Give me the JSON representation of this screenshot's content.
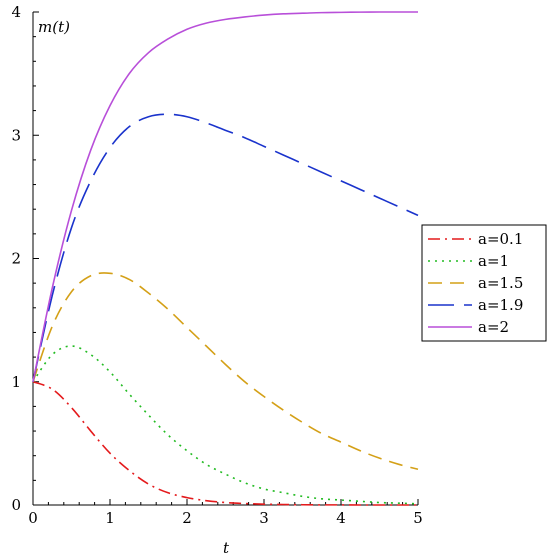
{
  "chart_data": {
    "type": "line",
    "xlabel": "t",
    "ylabel": "m(t)",
    "xlim": [
      0,
      5
    ],
    "ylim": [
      0,
      4
    ],
    "xticks": [
      "0",
      "1",
      "2",
      "3",
      "4",
      "5"
    ],
    "yticks": [
      "0",
      "1",
      "2",
      "3",
      "4"
    ],
    "grid": false,
    "legend_position": "right",
    "x": [
      0,
      0.25,
      0.5,
      0.75,
      1,
      1.25,
      1.5,
      1.75,
      2,
      2.25,
      2.5,
      2.75,
      3,
      3.25,
      3.5,
      3.75,
      4,
      4.25,
      4.5,
      4.75,
      5
    ],
    "series": [
      {
        "name": "a=0.1",
        "color": "#e41a1c",
        "dash": "dashdot",
        "values": [
          1.0,
          0.94,
          0.79,
          0.6,
          0.42,
          0.28,
          0.17,
          0.1,
          0.06,
          0.035,
          0.02,
          0.012,
          0.007,
          0.004,
          0.002,
          0.001,
          0.001,
          0.0,
          0.0,
          0.0,
          0.0
        ]
      },
      {
        "name": "a=1",
        "color": "#22bb22",
        "dash": "dot",
        "values": [
          1.0,
          1.22,
          1.29,
          1.22,
          1.08,
          0.9,
          0.73,
          0.57,
          0.44,
          0.33,
          0.25,
          0.18,
          0.13,
          0.1,
          0.07,
          0.05,
          0.04,
          0.03,
          0.02,
          0.015,
          0.01
        ]
      },
      {
        "name": "a=1.5",
        "color": "#d4a017",
        "dash": "dash",
        "values": [
          1.0,
          1.45,
          1.73,
          1.86,
          1.88,
          1.83,
          1.72,
          1.59,
          1.44,
          1.29,
          1.14,
          1.0,
          0.88,
          0.77,
          0.67,
          0.58,
          0.51,
          0.44,
          0.38,
          0.33,
          0.29
        ]
      },
      {
        "name": "a=1.9",
        "color": "#1a33cc",
        "dash": "longdash",
        "values": [
          1.0,
          1.7,
          2.25,
          2.63,
          2.9,
          3.07,
          3.15,
          3.17,
          3.15,
          3.1,
          3.04,
          2.98,
          2.91,
          2.84,
          2.77,
          2.7,
          2.63,
          2.56,
          2.49,
          2.42,
          2.35
        ]
      },
      {
        "name": "a=2",
        "color": "#b84fd9",
        "dash": "solid",
        "values": [
          1.0,
          1.76,
          2.39,
          2.88,
          3.24,
          3.5,
          3.67,
          3.78,
          3.86,
          3.91,
          3.94,
          3.96,
          3.975,
          3.985,
          3.99,
          3.995,
          3.997,
          3.999,
          4.0,
          4.0,
          4.0
        ]
      }
    ]
  }
}
